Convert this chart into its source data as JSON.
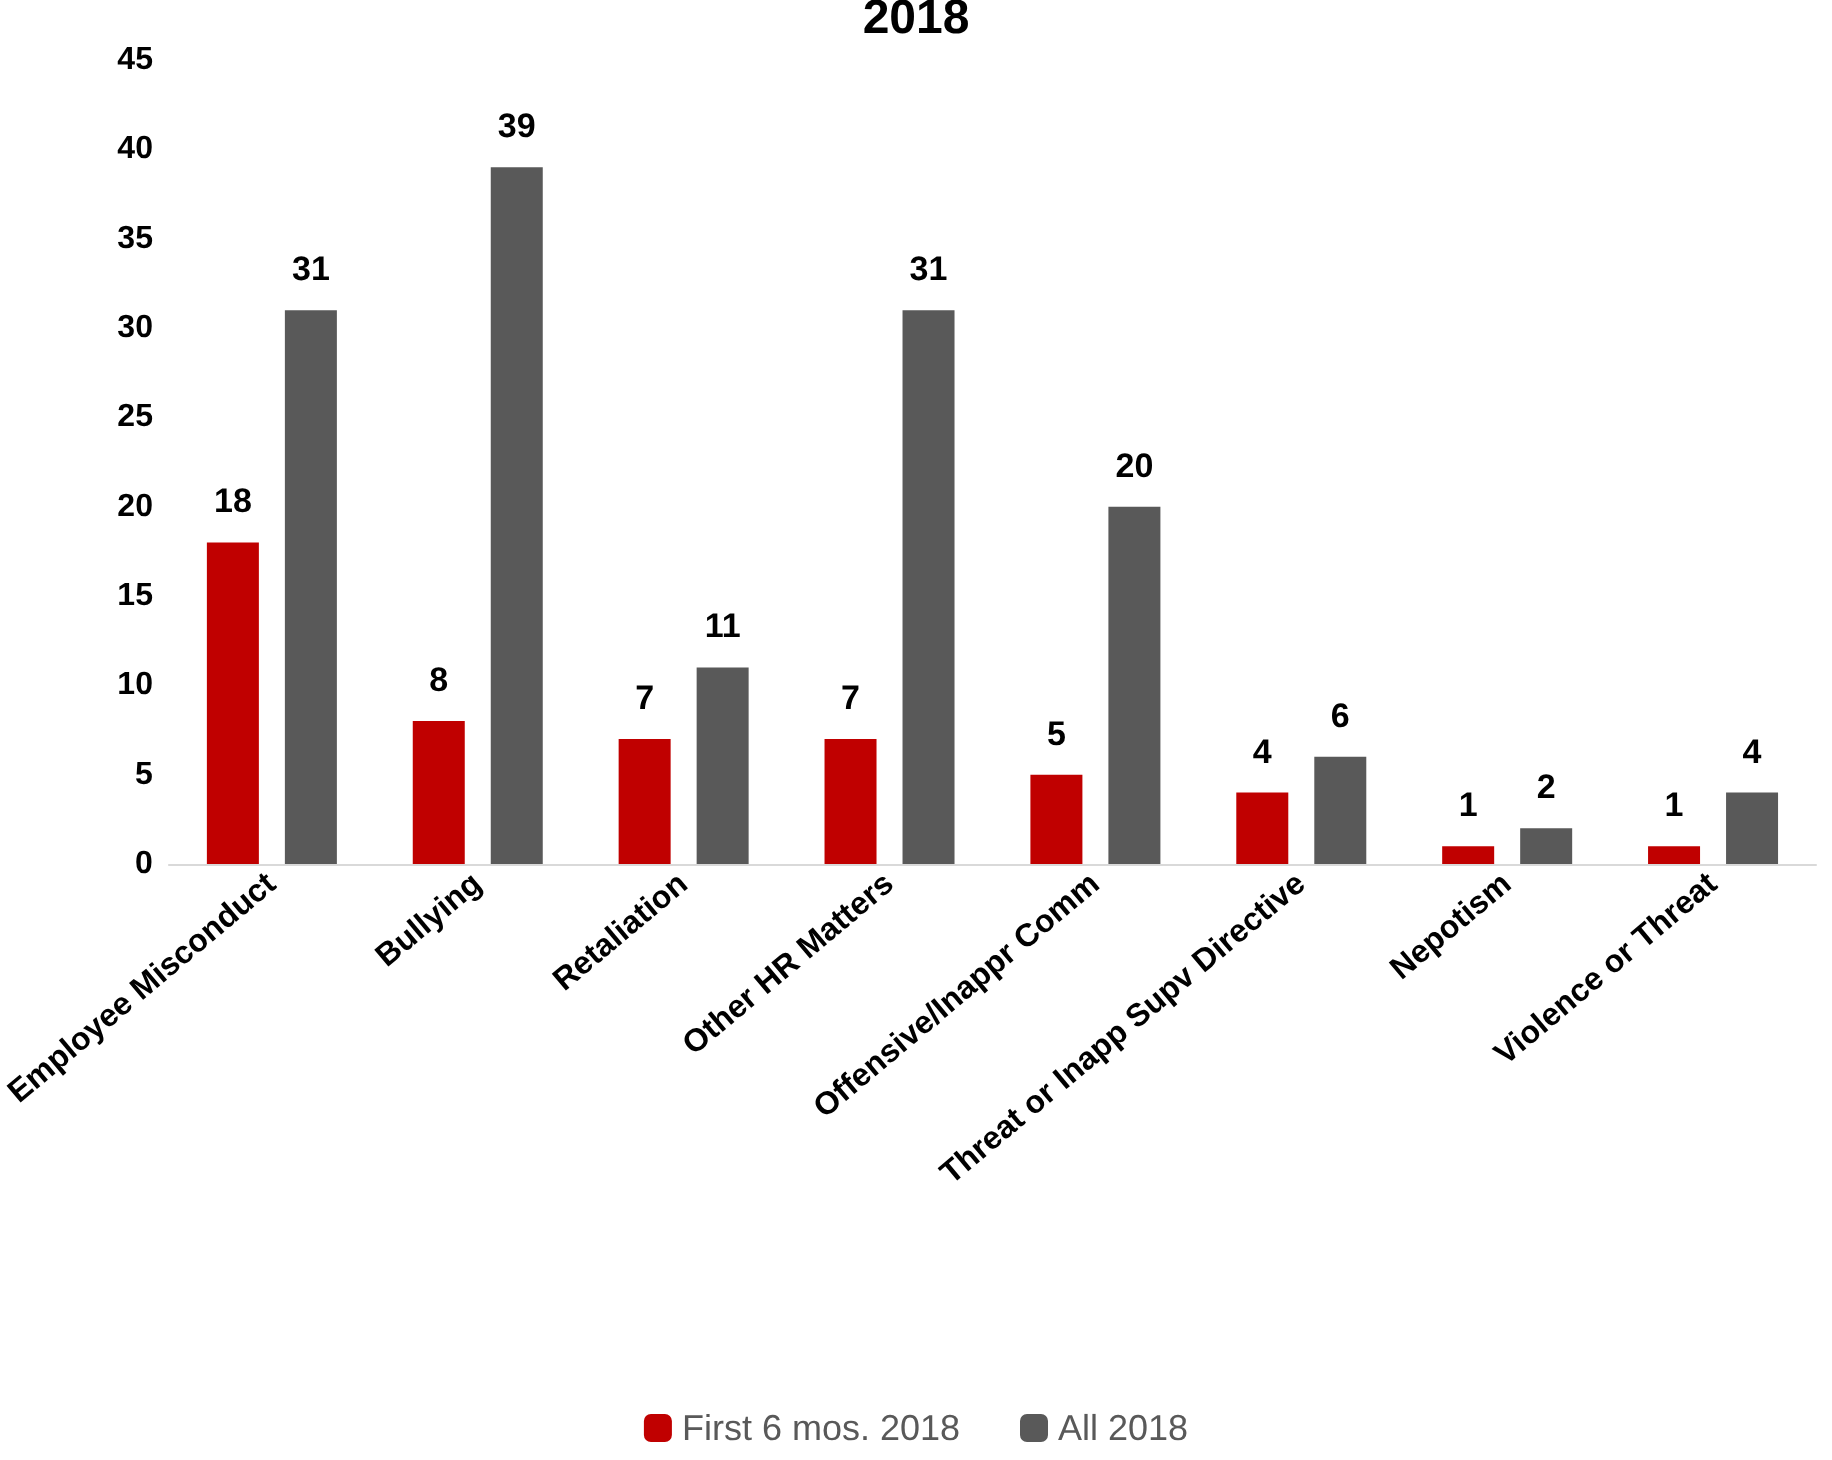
{
  "chart_data": {
    "type": "bar",
    "title": "2018",
    "categories": [
      "Employee Misconduct",
      "Bullying",
      "Retaliation",
      "Other HR Matters",
      "Offensive/Inappr Comm",
      "Threat or Inapp Supv Directive",
      "Nepotism",
      "Violence or Threat"
    ],
    "series": [
      {
        "name": "First 6 mos. 2018",
        "color": "#c00000",
        "values": [
          18,
          8,
          7,
          7,
          5,
          4,
          1,
          1
        ]
      },
      {
        "name": "All 2018",
        "color": "#595959",
        "values": [
          31,
          39,
          11,
          31,
          20,
          6,
          2,
          4
        ]
      }
    ],
    "ylim": [
      0,
      45
    ],
    "yticks": [
      0,
      5,
      10,
      15,
      20,
      25,
      30,
      35,
      40,
      45
    ],
    "grid": false,
    "legend": "bottom",
    "data_labels": true
  }
}
